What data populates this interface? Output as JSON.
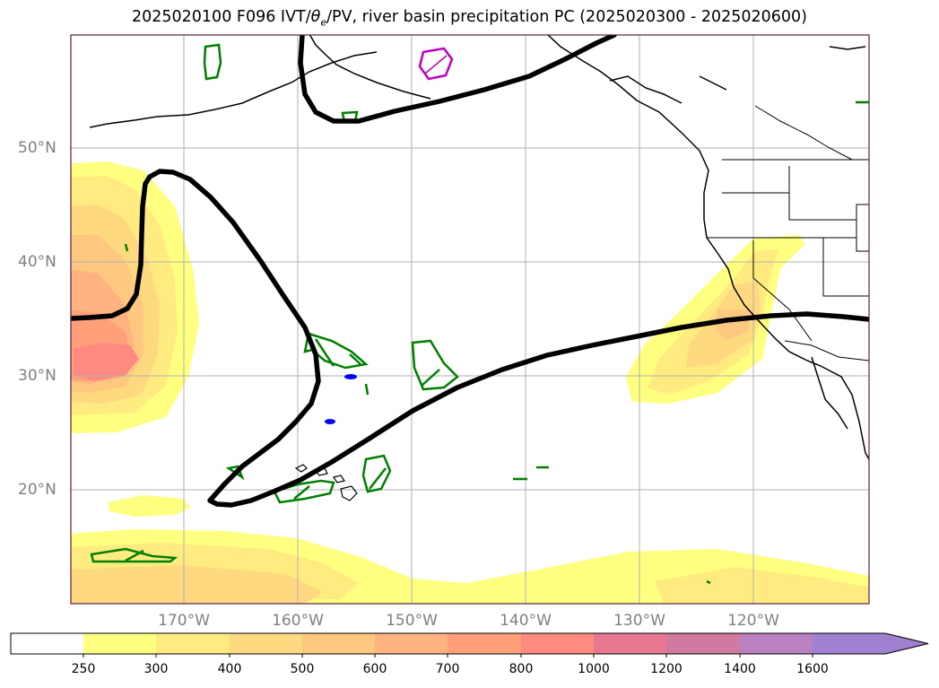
{
  "title": "2025020100 F096 IVT/θe/PV, river basin precipitation PC (2025020300 - 2025020600)",
  "title_parts": {
    "prefix": "2025020100 F096 IVT/",
    "theta": "θ",
    "theta_sub": "e",
    "suffix": "/PV, river basin precipitation PC (2025020300 - 2025020600)"
  },
  "map": {
    "lat_labels": [
      "50°N",
      "40°N",
      "30°N",
      "20°N"
    ],
    "lon_labels": [
      "170°W",
      "160°W",
      "150°W",
      "140°W",
      "130°W",
      "120°W"
    ]
  },
  "colorbar": {
    "ticks": [
      "250",
      "300",
      "400",
      "500",
      "600",
      "700",
      "800",
      "1000",
      "1200",
      "1400",
      "1600"
    ],
    "colors": [
      "#ffffff",
      "#ffff80",
      "#ffeb80",
      "#ffd980",
      "#ffc880",
      "#ffb480",
      "#ffa07a",
      "#ff8a80",
      "#e87890",
      "#d07aa0",
      "#bb80c0",
      "#a080d0"
    ]
  }
}
